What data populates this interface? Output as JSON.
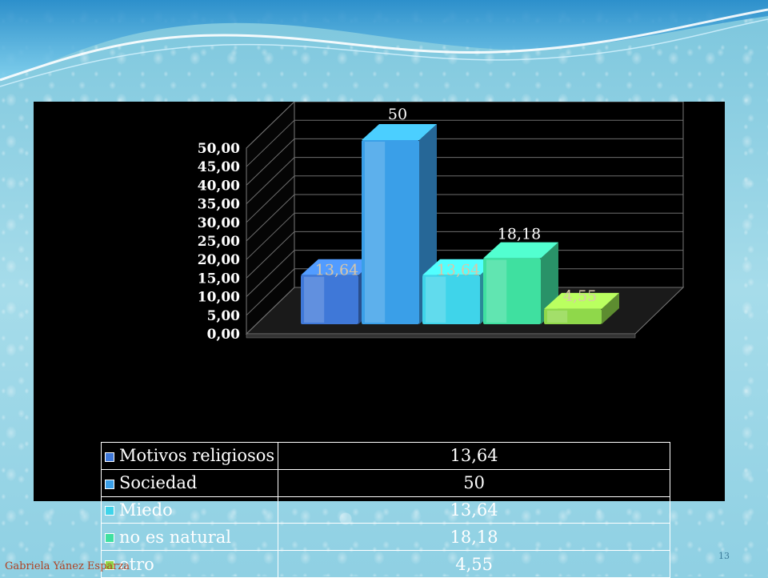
{
  "footer": {
    "author": "Gabriela Yánez Esparza",
    "page": "13"
  },
  "colors": {
    "panel": "#000000",
    "series": [
      "#3f78d8",
      "#3a9fe8",
      "#3fd4ea",
      "#3fe0a0",
      "#8fd84a"
    ]
  },
  "chart_data": {
    "type": "bar",
    "style": "3d-column-with-data-table",
    "categories": [
      "Motivos religiosos",
      "Sociedad",
      "Miedo",
      "no es natural",
      "otro"
    ],
    "values": [
      13.64,
      50,
      13.64,
      18.18,
      4.55
    ],
    "value_labels": [
      "13,64",
      "50",
      "13,64",
      "18,18",
      "4,55"
    ],
    "ylim": [
      0,
      50
    ],
    "yticks": [
      "0,00",
      "5,00",
      "10,00",
      "15,00",
      "20,00",
      "25,00",
      "30,00",
      "35,00",
      "40,00",
      "45,00",
      "50,00"
    ],
    "grid": true,
    "legend": "data table below chart",
    "table": [
      {
        "name": "Motivos religiosos",
        "value": "13,64"
      },
      {
        "name": "Sociedad",
        "value": "50"
      },
      {
        "name": "Miedo",
        "value": "13,64"
      },
      {
        "name": "no es natural",
        "value": "18,18"
      },
      {
        "name": "otro",
        "value": "4,55"
      }
    ]
  }
}
